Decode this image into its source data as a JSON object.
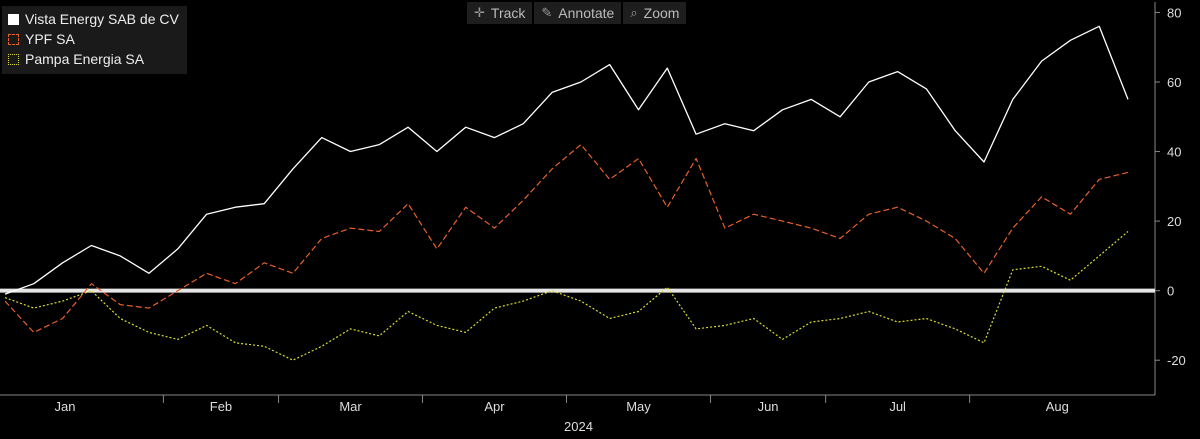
{
  "toolbar": {
    "track": "Track",
    "annotate": "Annotate",
    "zoom": "Zoom"
  },
  "legend": [
    {
      "label": "Vista Energy SAB de CV",
      "color": "#ffffff",
      "style": "solid"
    },
    {
      "label": "YPF SA",
      "color": "#e8602a",
      "style": "dashed"
    },
    {
      "label": "Pampa Energia SA",
      "color": "#dada30",
      "style": "dotted"
    }
  ],
  "chart_data": {
    "type": "line",
    "x": [
      "Jan",
      "Jan",
      "Jan",
      "Jan",
      "Jan",
      "Jan",
      "Feb",
      "Feb",
      "Feb",
      "Feb",
      "Mar",
      "Mar",
      "Mar",
      "Mar",
      "Mar",
      "Apr",
      "Apr",
      "Apr",
      "Apr",
      "Apr",
      "May",
      "May",
      "May",
      "May",
      "May",
      "Jun",
      "Jun",
      "Jun",
      "Jun",
      "Jul",
      "Jul",
      "Jul",
      "Jul",
      "Jul",
      "Aug",
      "Aug",
      "Aug",
      "Aug",
      "Aug",
      "Aug"
    ],
    "x_tick_labels": [
      "Jan",
      "Feb",
      "Mar",
      "Apr",
      "May",
      "Jun",
      "Jul",
      "Aug"
    ],
    "x_group_label": "2024",
    "series": [
      {
        "name": "Vista Energy SAB de CV",
        "color": "#ffffff",
        "values": [
          -1,
          2,
          8,
          13,
          10,
          5,
          12,
          22,
          24,
          25,
          35,
          44,
          40,
          42,
          47,
          40,
          47,
          44,
          48,
          57,
          60,
          65,
          52,
          64,
          45,
          48,
          46,
          52,
          55,
          50,
          60,
          63,
          58,
          46,
          37,
          55,
          66,
          72,
          76,
          55
        ]
      },
      {
        "name": "YPF SA",
        "color": "#e8602a",
        "values": [
          -3,
          -12,
          -8,
          2,
          -4,
          -5,
          0,
          5,
          2,
          8,
          5,
          15,
          18,
          17,
          25,
          12,
          24,
          18,
          26,
          35,
          42,
          32,
          38,
          24,
          38,
          18,
          22,
          20,
          18,
          15,
          22,
          24,
          20,
          15,
          5,
          18,
          27,
          22,
          32,
          34
        ]
      },
      {
        "name": "Pampa Energia SA",
        "color": "#dada30",
        "values": [
          -2,
          -5,
          -3,
          0,
          -8,
          -12,
          -14,
          -10,
          -15,
          -16,
          -20,
          -16,
          -11,
          -13,
          -6,
          -10,
          -12,
          -5,
          -3,
          0,
          -3,
          -8,
          -6,
          1,
          -11,
          -10,
          -8,
          -14,
          -9,
          -8,
          -6,
          -9,
          -8,
          -11,
          -15,
          6,
          7,
          3,
          10,
          17
        ]
      }
    ],
    "ylim": [
      -30,
      83
    ],
    "yticks": [
      -20,
      0,
      20,
      40,
      60,
      80
    ],
    "zero_line": true,
    "legend_position": "top-left",
    "grid": false
  }
}
